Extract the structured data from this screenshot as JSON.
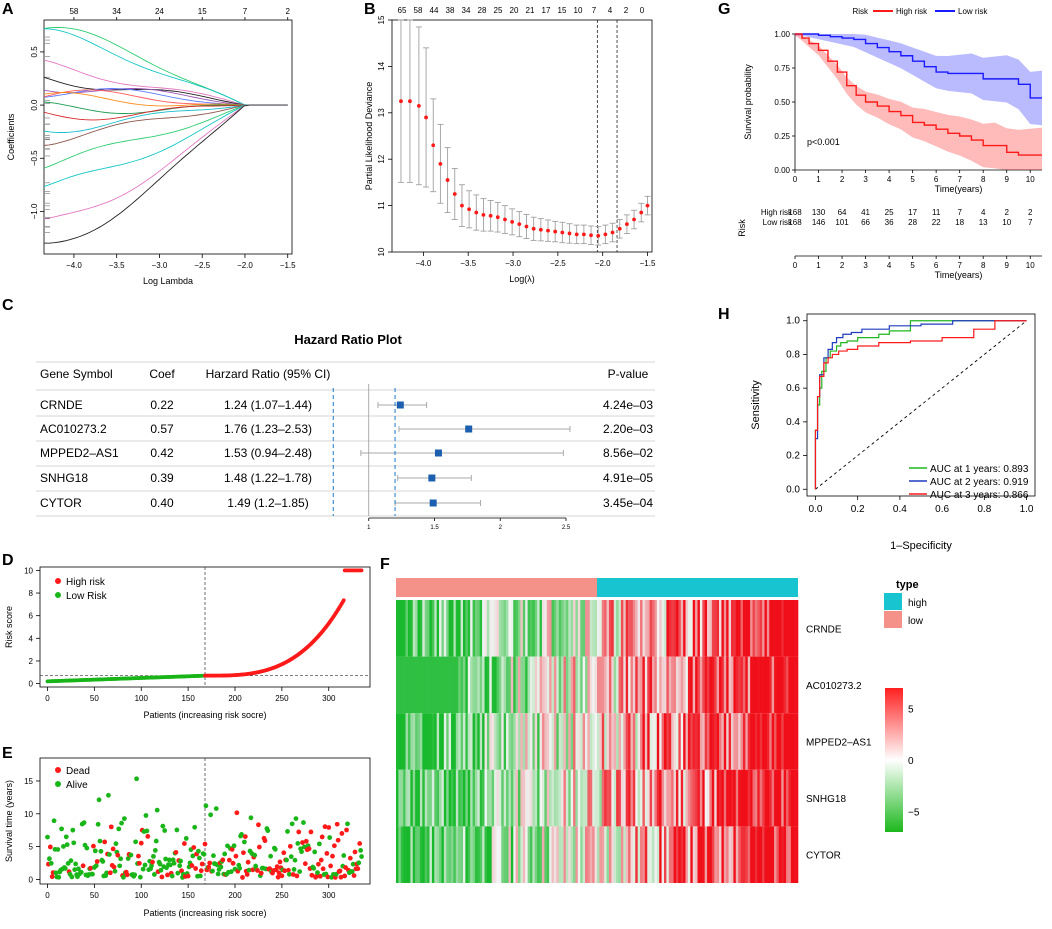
{
  "panels": {
    "A": "A",
    "B": "B",
    "C": "C",
    "D": "D",
    "E": "E",
    "F": "F",
    "G": "G",
    "H": "H"
  },
  "chart_data": [
    {
      "id": "A",
      "type": "line",
      "title": "",
      "xlabel": "Log Lambda",
      "ylabel": "Coefficients",
      "xlim": [
        -4.35,
        -1.45
      ],
      "ylim": [
        -1.4,
        0.8
      ],
      "xticks": [
        -4.0,
        -3.5,
        -3.0,
        -2.5,
        -2.0,
        -1.5
      ],
      "xtick_labels": [
        "−4.0",
        "−3.5",
        "−3.0",
        "−2.5",
        "−2.0",
        "−1.5"
      ],
      "yticks": [
        -1.0,
        -0.5,
        0.0,
        0.5
      ],
      "ytick_labels": [
        "−1.0",
        "−0.5",
        "0.0",
        "0.5"
      ],
      "top_ticks": [
        -4.35,
        -3.82,
        -3.38,
        -2.93,
        -2.5,
        -1.98,
        -1.5
      ],
      "top_labels": [
        "58",
        "34",
        "24",
        "15",
        "7",
        "2"
      ],
      "top_label_x": [
        -4.0,
        -3.5,
        -3.0,
        -2.5,
        -2.0,
        -1.5
      ],
      "series_colors": [
        "#2ecc71",
        "#16c7c7",
        "#e377c2",
        "#222222",
        "#9b59b6",
        "#5b7cff",
        "#ff5a5a",
        "#ff8c1a",
        "#1f9d55",
        "#d62728",
        "#17becf",
        "#8c564b"
      ],
      "series": [
        {
          "name": "c1",
          "start": 0.72,
          "peak_x": -3.9,
          "end": 0.0
        },
        {
          "name": "c2",
          "start": 0.65,
          "peak_x": -3.3,
          "end": 0.0
        },
        {
          "name": "c3",
          "start": 0.35,
          "peak_x": -3.6,
          "end": 0.0
        },
        {
          "name": "c4",
          "start": 0.25,
          "peak_x": -3.0,
          "end": 0.0
        },
        {
          "name": "c5",
          "start": 0.2,
          "peak_x": -2.4,
          "end": 0.0
        },
        {
          "name": "c6",
          "start": 0.15,
          "peak_x": -2.0,
          "end": 0.0
        },
        {
          "name": "c7",
          "start": 0.1,
          "peak_x": -3.5,
          "end": 0.0
        },
        {
          "name": "c8",
          "start": 0.05,
          "peak_x": -2.8,
          "end": 0.0
        },
        {
          "name": "c9",
          "start": -0.05,
          "peak_x": -3.4,
          "end": 0.0
        },
        {
          "name": "c10",
          "start": -0.1,
          "peak_x": -2.6,
          "end": 0.0
        },
        {
          "name": "c11",
          "start": -0.2,
          "peak_x": -3.2,
          "end": 0.0
        },
        {
          "name": "c12",
          "start": -0.3,
          "peak_x": -2.9,
          "end": 0.0
        },
        {
          "name": "c13",
          "start": -0.55,
          "peak_x": -3.1,
          "end": 0.0
        },
        {
          "name": "c14",
          "start": -0.8,
          "peak_x": -3.0,
          "end": 0.0
        },
        {
          "name": "c15",
          "start": -1.15,
          "peak_x": -2.7,
          "end": 0.0
        },
        {
          "name": "c16",
          "start": -1.35,
          "peak_x": -2.5,
          "end": 0.0
        }
      ]
    },
    {
      "id": "B",
      "type": "scatter",
      "title": "",
      "xlabel": "Log(λ)",
      "ylabel": "Partial Likelihood Deviance",
      "xlim": [
        -4.35,
        -1.45
      ],
      "ylim": [
        10,
        15
      ],
      "xticks": [
        -4.0,
        -3.5,
        -3.0,
        -2.5,
        -2.0,
        -1.5
      ],
      "xtick_labels": [
        "−4.0",
        "−3.5",
        "−3.0",
        "−2.5",
        "−2.0",
        "−1.5"
      ],
      "yticks": [
        10,
        11,
        12,
        13,
        14,
        15
      ],
      "ytick_labels": [
        "10",
        "11",
        "12",
        "13",
        "14",
        "15"
      ],
      "top_labels": [
        "65",
        "58",
        "44",
        "38",
        "34",
        "28",
        "25",
        "20",
        "21",
        "17",
        "15",
        "10",
        "7",
        "4",
        "2",
        "0"
      ],
      "vlines": [
        -2.06,
        -1.84
      ],
      "x": [
        -4.25,
        -4.15,
        -4.05,
        -3.97,
        -3.89,
        -3.81,
        -3.73,
        -3.65,
        -3.57,
        -3.49,
        -3.41,
        -3.33,
        -3.25,
        -3.17,
        -3.09,
        -3.01,
        -2.93,
        -2.85,
        -2.77,
        -2.69,
        -2.61,
        -2.53,
        -2.45,
        -2.37,
        -2.29,
        -2.21,
        -2.13,
        -2.05,
        -1.97,
        -1.89,
        -1.81,
        -1.73,
        -1.65,
        -1.57,
        -1.5
      ],
      "y": [
        13.25,
        13.25,
        13.15,
        12.9,
        12.3,
        11.9,
        11.55,
        11.25,
        11.0,
        10.92,
        10.85,
        10.8,
        10.78,
        10.75,
        10.7,
        10.65,
        10.6,
        10.55,
        10.5,
        10.48,
        10.46,
        10.44,
        10.42,
        10.4,
        10.38,
        10.38,
        10.36,
        10.35,
        10.38,
        10.42,
        10.5,
        10.6,
        10.7,
        10.85,
        11.0
      ],
      "err": [
        1.75,
        1.75,
        1.7,
        1.5,
        1.0,
        0.85,
        0.7,
        0.55,
        0.45,
        0.4,
        0.38,
        0.35,
        0.33,
        0.32,
        0.3,
        0.28,
        0.27,
        0.26,
        0.25,
        0.24,
        0.23,
        0.22,
        0.22,
        0.21,
        0.2,
        0.2,
        0.2,
        0.2,
        0.2,
        0.2,
        0.2,
        0.2,
        0.2,
        0.2,
        0.2
      ]
    },
    {
      "id": "C",
      "type": "table",
      "title": "Hazard Ratio Plot",
      "headers": [
        "Gene Symbol",
        "Coef",
        "Harzard Ratio (95% CI)",
        "P-value"
      ],
      "rows": [
        {
          "gene": "CRNDE",
          "coef": "0.22",
          "hr_text": "1.24 (1.07–1.44)",
          "p": "4.24e–03",
          "hr": 1.24,
          "lo": 1.07,
          "hi": 1.44
        },
        {
          "gene": "AC010273.2",
          "coef": "0.57",
          "hr_text": "1.76 (1.23–2.53)",
          "p": "2.20e–03",
          "hr": 1.76,
          "lo": 1.23,
          "hi": 2.53
        },
        {
          "gene": "MPPED2–AS1",
          "coef": "0.42",
          "hr_text": "1.53 (0.94–2.48)",
          "p": "8.56e–02",
          "hr": 1.53,
          "lo": 0.94,
          "hi": 2.48
        },
        {
          "gene": "SNHG18",
          "coef": "0.39",
          "hr_text": "1.48 (1.22–1.78)",
          "p": "4.91e–05",
          "hr": 1.48,
          "lo": 1.22,
          "hi": 1.78
        },
        {
          "gene": "CYTOR",
          "coef": "0.40",
          "hr_text": "1.49 (1.2–1.85)",
          "p": "3.45e–04",
          "hr": 1.49,
          "lo": 1.2,
          "hi": 1.85
        }
      ],
      "xlim": [
        0.5,
        2.5
      ],
      "xticks": [
        1,
        1.5,
        2,
        2.5
      ],
      "xtick_labels": [
        "1",
        "1.5",
        "2",
        "2.5"
      ],
      "ref_line": 1,
      "dashed_lines": [
        0.73,
        1.2
      ]
    },
    {
      "id": "D",
      "type": "scatter",
      "xlabel": "Patients (increasing risk socre)",
      "ylabel": "Risk score",
      "xlim": [
        0,
        336
      ],
      "ylim": [
        0,
        10
      ],
      "xticks": [
        0,
        50,
        100,
        150,
        200,
        250,
        300
      ],
      "yticks": [
        0,
        2,
        4,
        6,
        8,
        10
      ],
      "legend": [
        "High risk",
        "Low Risk"
      ],
      "colors": {
        "high": "#ff1a1a",
        "low": "#19b519"
      },
      "cutoff_index": 168,
      "cutoff_score": 0.7,
      "n": 336
    },
    {
      "id": "E",
      "type": "scatter",
      "xlabel": "Patients (increasing risk socre)",
      "ylabel": "Survival time (years)",
      "xlim": [
        0,
        336
      ],
      "ylim": [
        0,
        18
      ],
      "xticks": [
        0,
        50,
        100,
        150,
        200,
        250,
        300
      ],
      "yticks": [
        0,
        5,
        10,
        15
      ],
      "legend": [
        "Dead",
        "Alive"
      ],
      "colors": {
        "dead": "#ff1a1a",
        "alive": "#19b519"
      },
      "cutoff_index": 168,
      "n": 336
    },
    {
      "id": "F",
      "type": "heatmap",
      "genes": [
        "CRNDE",
        "AC010273.2",
        "MPPED2–AS1",
        "SNHG18",
        "CYTOR"
      ],
      "groups": [
        "low",
        "high"
      ],
      "legend_title": "type",
      "legend_items": [
        "high",
        "low"
      ],
      "legend_colors": {
        "high": "#18c4d0",
        "low": "#f4928a"
      },
      "scale_ticks": [
        5,
        0,
        -5
      ],
      "scale_labels": [
        "5",
        "0",
        "−5"
      ],
      "n_cols": 336
    },
    {
      "id": "G",
      "type": "line",
      "legend_title": "Risk",
      "legend": [
        "High risk",
        "Low risk"
      ],
      "colors": {
        "high": "#ff1a1a",
        "low": "#1a1aff"
      },
      "xlabel": "Time(years)",
      "ylabel": "Survival probability",
      "xlim": [
        0,
        10.5
      ],
      "ylim": [
        0,
        1
      ],
      "xticks": [
        0,
        1,
        2,
        3,
        4,
        5,
        6,
        7,
        8,
        9,
        10
      ],
      "yticks": [
        0.0,
        0.25,
        0.5,
        0.75,
        1.0
      ],
      "ytick_labels": [
        "0.00",
        "0.25",
        "0.50",
        "0.75",
        "1.00"
      ],
      "pvalue": "p<0.001",
      "high_curve": {
        "x": [
          0,
          0.3,
          0.6,
          1,
          1.4,
          1.8,
          2.2,
          2.6,
          3,
          3.5,
          4,
          4.5,
          5,
          5.5,
          6,
          6.5,
          7,
          7.5,
          8,
          8.5,
          9,
          9.5,
          10,
          10.5
        ],
        "y": [
          1,
          0.97,
          0.93,
          0.88,
          0.8,
          0.72,
          0.62,
          0.55,
          0.5,
          0.47,
          0.43,
          0.4,
          0.35,
          0.33,
          0.3,
          0.27,
          0.25,
          0.22,
          0.18,
          0.18,
          0.13,
          0.11,
          0.11,
          0.11
        ]
      },
      "low_curve": {
        "x": [
          0,
          0.5,
          1,
          1.5,
          2,
          2.5,
          3,
          3.5,
          4,
          4.5,
          5,
          5.5,
          6,
          6.5,
          7,
          7.5,
          8,
          8.5,
          9,
          9.5,
          10,
          10.5
        ],
        "y": [
          1,
          1,
          0.99,
          0.98,
          0.97,
          0.96,
          0.93,
          0.9,
          0.87,
          0.84,
          0.8,
          0.76,
          0.72,
          0.71,
          0.71,
          0.71,
          0.67,
          0.67,
          0.67,
          0.63,
          0.53,
          0.53
        ]
      },
      "risk_table": {
        "label": "Risk",
        "rows": [
          {
            "name": "High risk",
            "counts": [
              "168",
              "130",
              "64",
              "41",
              "25",
              "17",
              "11",
              "7",
              "4",
              "2",
              "2"
            ]
          },
          {
            "name": "Low risk",
            "counts": [
              "168",
              "146",
              "101",
              "66",
              "36",
              "28",
              "22",
              "18",
              "13",
              "10",
              "7"
            ]
          }
        ]
      }
    },
    {
      "id": "H",
      "type": "line",
      "xlabel": "1–Specificity",
      "ylabel": "Sensitivity",
      "xlim": [
        0,
        1
      ],
      "ylim": [
        0,
        1
      ],
      "xticks": [
        0.0,
        0.2,
        0.4,
        0.6,
        0.8,
        1.0
      ],
      "yticks": [
        0.0,
        0.2,
        0.4,
        0.6,
        0.8,
        1.0
      ],
      "series": [
        {
          "name": "AUC at 1 years: 0.893",
          "color": "#1fb81f",
          "x": [
            0,
            0.01,
            0.02,
            0.03,
            0.05,
            0.07,
            0.1,
            0.12,
            0.15,
            0.2,
            0.3,
            0.35,
            0.45,
            0.6,
            1
          ],
          "y": [
            0,
            0.35,
            0.5,
            0.6,
            0.7,
            0.78,
            0.82,
            0.85,
            0.87,
            0.88,
            0.9,
            0.92,
            0.94,
            1,
            1
          ]
        },
        {
          "name": "AUC at 2 years: 0.919",
          "color": "#1f3cbf",
          "x": [
            0,
            0.01,
            0.02,
            0.04,
            0.06,
            0.08,
            0.1,
            0.13,
            0.17,
            0.22,
            0.35,
            0.5,
            0.65,
            0.8,
            1
          ],
          "y": [
            0,
            0.3,
            0.55,
            0.68,
            0.78,
            0.83,
            0.87,
            0.9,
            0.92,
            0.93,
            0.95,
            0.97,
            0.98,
            1,
            1
          ]
        },
        {
          "name": "AUC at 3 years: 0.866",
          "color": "#ff1a1a",
          "x": [
            0,
            0.01,
            0.02,
            0.04,
            0.06,
            0.08,
            0.11,
            0.15,
            0.2,
            0.3,
            0.45,
            0.6,
            0.75,
            0.85,
            0.9,
            1
          ],
          "y": [
            0,
            0.35,
            0.55,
            0.67,
            0.75,
            0.78,
            0.8,
            0.82,
            0.83,
            0.85,
            0.87,
            0.88,
            0.9,
            0.95,
            1,
            1
          ]
        }
      ]
    }
  ]
}
